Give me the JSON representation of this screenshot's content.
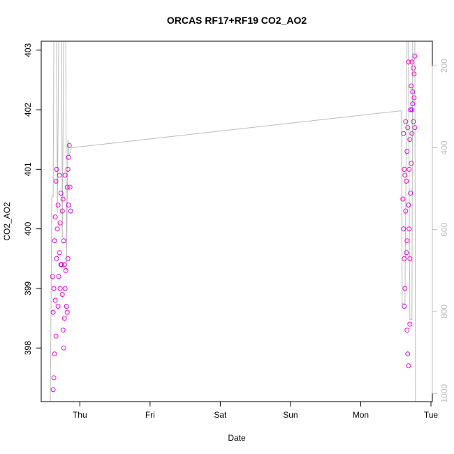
{
  "chart_data": {
    "type": "scatter",
    "title": "ORCAS RF17+RF19 CO2_AO2",
    "xlabel": "Date",
    "ylabel": "CO2_AO2",
    "x_ticks": [
      "Thu",
      "Fri",
      "Sat",
      "Sun",
      "Mon",
      "Tue"
    ],
    "x_tick_days": [
      0,
      1,
      2,
      3,
      4,
      5
    ],
    "xlim_days": [
      -0.55,
      5.02
    ],
    "ylim": [
      397.1,
      403.15
    ],
    "y_ticks": [
      398,
      399,
      400,
      401,
      402,
      403
    ],
    "right_axis": {
      "tick_values": [
        200,
        400,
        600,
        800,
        1000
      ],
      "ylim": [
        1020,
        140
      ],
      "color": "#bbbbbb"
    },
    "grid": false,
    "colors": {
      "points": "#ff00cc",
      "points_alt": "#cc00ff",
      "altitude": "#bbbbbb"
    },
    "series": [
      {
        "values": [
          {
            "x": -0.38,
            "y": 397.3
          },
          {
            "x": -0.37,
            "y": 397.5
          },
          {
            "x": -0.36,
            "y": 397.9
          },
          {
            "x": -0.38,
            "y": 398.6
          },
          {
            "x": -0.37,
            "y": 399.0
          },
          {
            "x": -0.39,
            "y": 399.2
          },
          {
            "x": -0.36,
            "y": 399.8
          },
          {
            "x": -0.35,
            "y": 400.2
          },
          {
            "x": -0.34,
            "y": 400.8
          },
          {
            "x": -0.33,
            "y": 401.0
          },
          {
            "x": -0.34,
            "y": 398.2
          },
          {
            "x": -0.35,
            "y": 398.8
          },
          {
            "x": -0.33,
            "y": 399.5
          },
          {
            "x": -0.32,
            "y": 400.0
          },
          {
            "x": -0.31,
            "y": 400.4
          },
          {
            "x": -0.3,
            "y": 399.2
          },
          {
            "x": -0.29,
            "y": 399.6
          },
          {
            "x": -0.28,
            "y": 400.1
          },
          {
            "x": -0.27,
            "y": 400.6
          },
          {
            "x": -0.26,
            "y": 399.4
          },
          {
            "x": -0.25,
            "y": 398.9
          },
          {
            "x": -0.24,
            "y": 398.3
          },
          {
            "x": -0.23,
            "y": 398.0
          },
          {
            "x": -0.22,
            "y": 398.5
          },
          {
            "x": -0.21,
            "y": 399.0
          },
          {
            "x": -0.25,
            "y": 400.3
          },
          {
            "x": -0.24,
            "y": 400.5
          },
          {
            "x": -0.23,
            "y": 399.8
          },
          {
            "x": -0.22,
            "y": 399.4
          },
          {
            "x": -0.2,
            "y": 399.3
          },
          {
            "x": -0.19,
            "y": 398.7
          },
          {
            "x": -0.18,
            "y": 398.6
          },
          {
            "x": -0.17,
            "y": 399.5
          },
          {
            "x": -0.16,
            "y": 400.4
          },
          {
            "x": -0.18,
            "y": 400.7
          },
          {
            "x": -0.17,
            "y": 401.0
          },
          {
            "x": -0.16,
            "y": 401.2
          },
          {
            "x": -0.15,
            "y": 401.4
          },
          {
            "x": -0.14,
            "y": 400.7
          },
          {
            "x": -0.13,
            "y": 400.3
          },
          {
            "x": -0.31,
            "y": 398.7
          },
          {
            "x": -0.28,
            "y": 399.0
          },
          {
            "x": -0.27,
            "y": 399.4
          },
          {
            "x": -0.29,
            "y": 400.9
          },
          {
            "x": -0.21,
            "y": 400.9
          }
        ]
      },
      {
        "values": [
          {
            "x": 4.61,
            "y": 401.6
          },
          {
            "x": 4.62,
            "y": 401.0
          },
          {
            "x": 4.6,
            "y": 400.5
          },
          {
            "x": 4.61,
            "y": 400.0
          },
          {
            "x": 4.62,
            "y": 399.5
          },
          {
            "x": 4.63,
            "y": 399.0
          },
          {
            "x": 4.62,
            "y": 398.7
          },
          {
            "x": 4.64,
            "y": 400.3
          },
          {
            "x": 4.65,
            "y": 400.8
          },
          {
            "x": 4.66,
            "y": 401.3
          },
          {
            "x": 4.67,
            "y": 401.7
          },
          {
            "x": 4.66,
            "y": 398.3
          },
          {
            "x": 4.67,
            "y": 397.9
          },
          {
            "x": 4.68,
            "y": 397.7
          },
          {
            "x": 4.66,
            "y": 399.8
          },
          {
            "x": 4.68,
            "y": 400.4
          },
          {
            "x": 4.69,
            "y": 401.0
          },
          {
            "x": 4.7,
            "y": 401.5
          },
          {
            "x": 4.71,
            "y": 402.0
          },
          {
            "x": 4.72,
            "y": 402.4
          },
          {
            "x": 4.73,
            "y": 402.8
          },
          {
            "x": 4.74,
            "y": 402.1
          },
          {
            "x": 4.75,
            "y": 401.8
          },
          {
            "x": 4.76,
            "y": 402.6
          },
          {
            "x": 4.77,
            "y": 402.9
          },
          {
            "x": 4.7,
            "y": 399.5
          },
          {
            "x": 4.69,
            "y": 400.0
          },
          {
            "x": 4.71,
            "y": 400.6
          },
          {
            "x": 4.72,
            "y": 401.1
          },
          {
            "x": 4.73,
            "y": 401.6
          },
          {
            "x": 4.74,
            "y": 402.3
          },
          {
            "x": 4.75,
            "y": 402.7
          },
          {
            "x": 4.76,
            "y": 402.2
          },
          {
            "x": 4.77,
            "y": 401.7
          },
          {
            "x": 4.68,
            "y": 402.8
          },
          {
            "x": 4.64,
            "y": 401.8
          },
          {
            "x": 4.65,
            "y": 399.6
          },
          {
            "x": 4.7,
            "y": 398.4
          },
          {
            "x": 4.63,
            "y": 400.9
          },
          {
            "x": 4.73,
            "y": 402.0
          }
        ]
      }
    ],
    "altitude_line": [
      {
        "x": -0.55,
        "v": 1020
      },
      {
        "x": -0.42,
        "v": 1020
      },
      {
        "x": -0.4,
        "v": 520
      },
      {
        "x": -0.38,
        "v": 520
      },
      {
        "x": -0.37,
        "v": 140
      },
      {
        "x": -0.33,
        "v": 140
      },
      {
        "x": -0.32,
        "v": 560
      },
      {
        "x": -0.3,
        "v": 140
      },
      {
        "x": -0.26,
        "v": 140
      },
      {
        "x": -0.25,
        "v": 620
      },
      {
        "x": -0.23,
        "v": 140
      },
      {
        "x": -0.2,
        "v": 140
      },
      {
        "x": -0.19,
        "v": 700
      },
      {
        "x": -0.17,
        "v": 380
      },
      {
        "x": -0.15,
        "v": 420
      },
      {
        "x": -0.12,
        "v": 400
      },
      {
        "x": 4.56,
        "v": 310
      },
      {
        "x": 4.58,
        "v": 310
      },
      {
        "x": 4.59,
        "v": 780
      },
      {
        "x": 4.63,
        "v": 780
      },
      {
        "x": 4.64,
        "v": 560
      },
      {
        "x": 4.66,
        "v": 140
      },
      {
        "x": 4.68,
        "v": 140
      },
      {
        "x": 4.7,
        "v": 820
      },
      {
        "x": 4.73,
        "v": 820
      },
      {
        "x": 4.74,
        "v": 140
      },
      {
        "x": 4.77,
        "v": 140
      },
      {
        "x": 4.78,
        "v": 1020
      },
      {
        "x": 5.02,
        "v": 1020
      }
    ]
  }
}
